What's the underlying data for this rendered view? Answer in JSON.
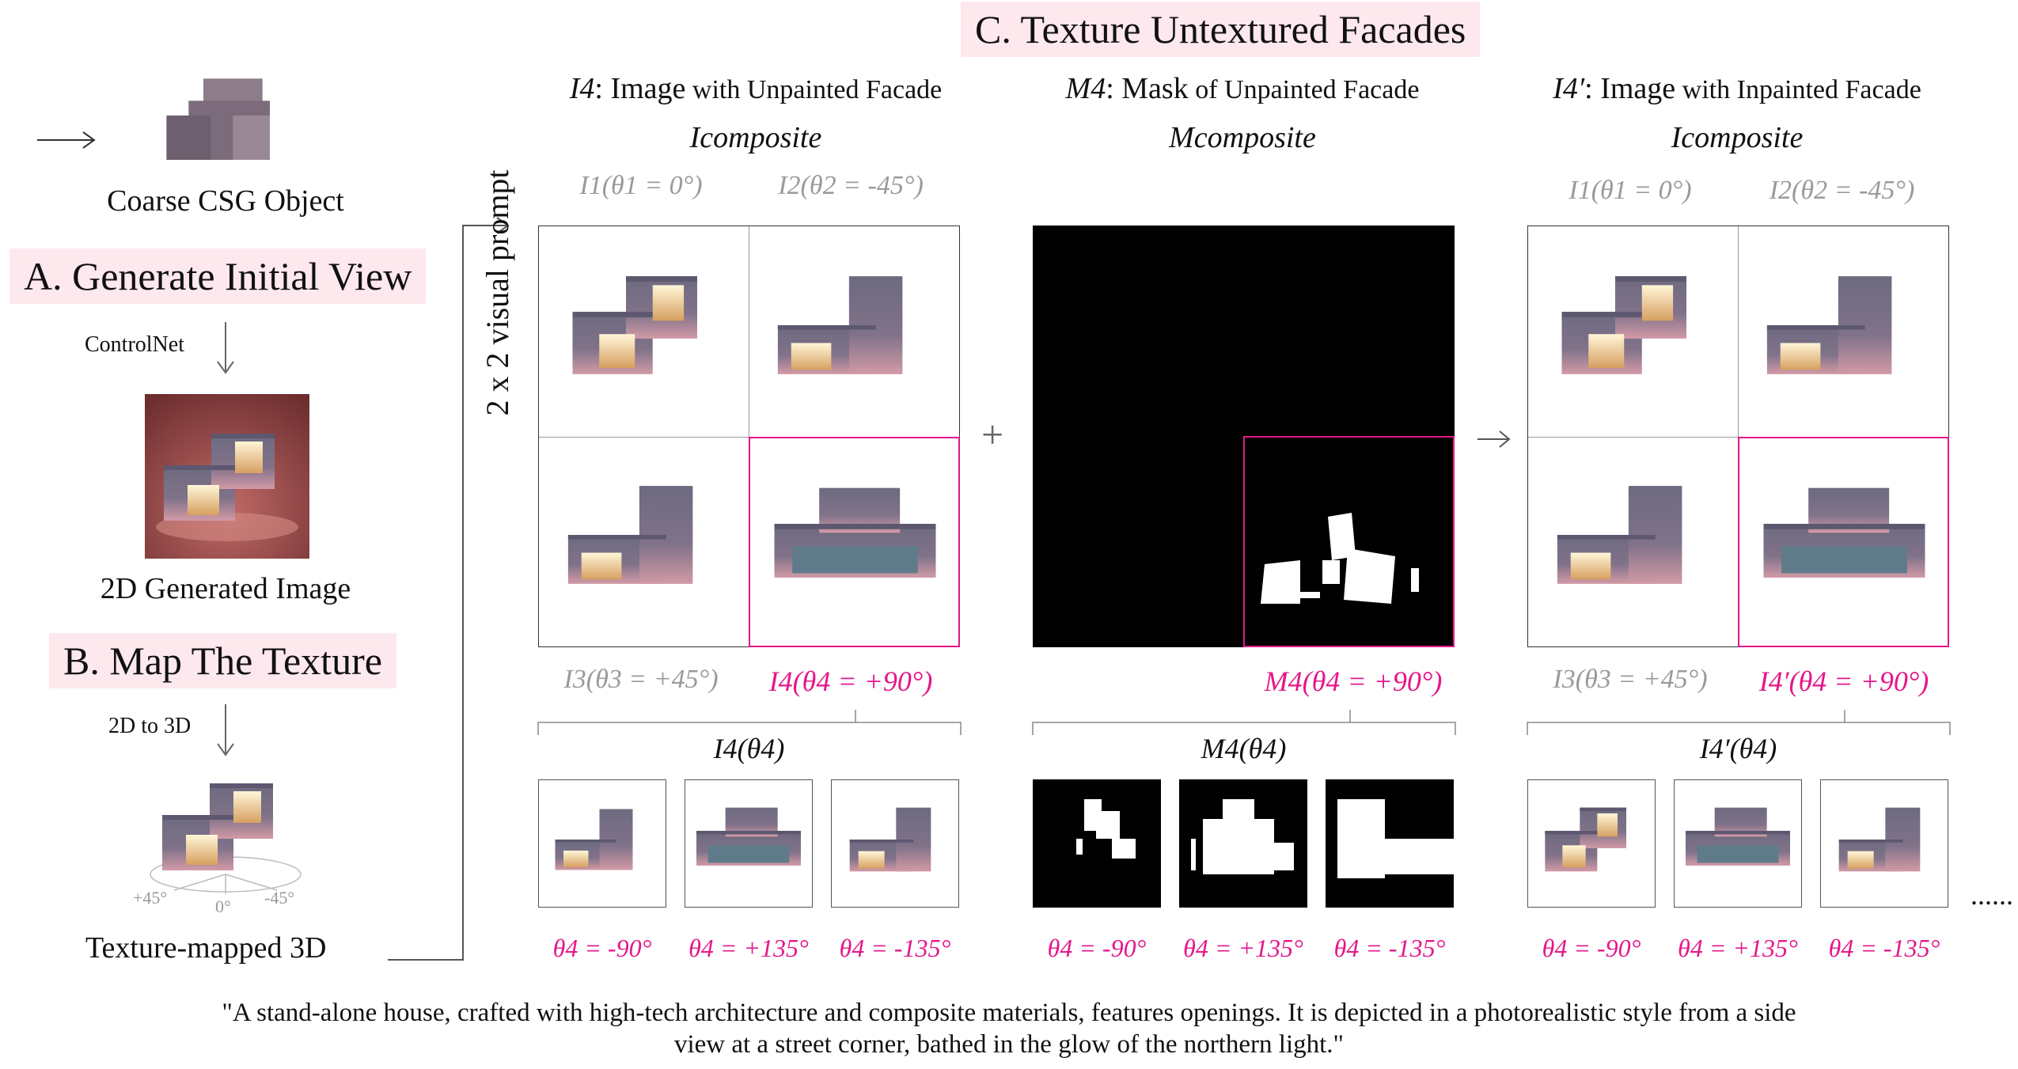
{
  "section_a": {
    "object_label": "Coarse CSG Object",
    "title": "A. Generate Initial View",
    "step_label": "ControlNet",
    "image_label": "2D Generated Image"
  },
  "section_b": {
    "title": "B. Map The Texture",
    "step_label": "2D to 3D",
    "object_label": "Texture-mapped 3D",
    "angle_left": "+45°",
    "angle_center": "0°",
    "angle_right": "-45°"
  },
  "section_c": {
    "title": "C. Texture Untextured Facades",
    "vertical_label": "2 x 2 visual prompt",
    "plus": "+",
    "ellipsis": "......",
    "panel1": {
      "sym": "I4",
      "colon": ": ",
      "big": "Image",
      "rest": " with Unpainted Facade",
      "composite": "Icomposite",
      "tl": "I1(θ1 = 0°)",
      "tr": "I2(θ2 = -45°)",
      "bl": "I3(θ3 = +45°)",
      "br": "I4(θ4 = +90°)",
      "bracket": "I4(θ4)",
      "angles": [
        "θ4 = -90°",
        "θ4 = +135°",
        "θ4 = -135°"
      ]
    },
    "panel2": {
      "sym": "M4",
      "colon": ": ",
      "big": "Mask",
      "rest": " of Unpainted Facade",
      "composite": "Mcomposite",
      "br": "M4(θ4 = +90°)",
      "bracket": "M4(θ4)",
      "angles": [
        "θ4 = -90°",
        "θ4 = +135°",
        "θ4 = -135°"
      ]
    },
    "panel3": {
      "sym": "I4′",
      "colon": ": ",
      "big": "Image",
      "rest": " with Inpainted Facade",
      "composite": "Icomposite",
      "tl": "I1(θ1 = 0°)",
      "tr": "I2(θ2 = -45°)",
      "bl": "I3(θ3 = +45°)",
      "br": "I4′(θ4 = +90°)",
      "bracket": "I4′(θ4)",
      "angles": [
        "θ4 = -90°",
        "θ4 = +135°",
        "θ4 = -135°"
      ]
    }
  },
  "caption_line1": "\"A stand-alone house, crafted with high-tech architecture and composite materials, features openings. It is depicted in a photorealistic style from a side",
  "caption_line2": "view at a street corner, bathed in the glow of the northern light.\"",
  "colors": {
    "accent": "#e4178a",
    "banner": "#fde8ee",
    "gray_label": "#9a9a9a"
  }
}
